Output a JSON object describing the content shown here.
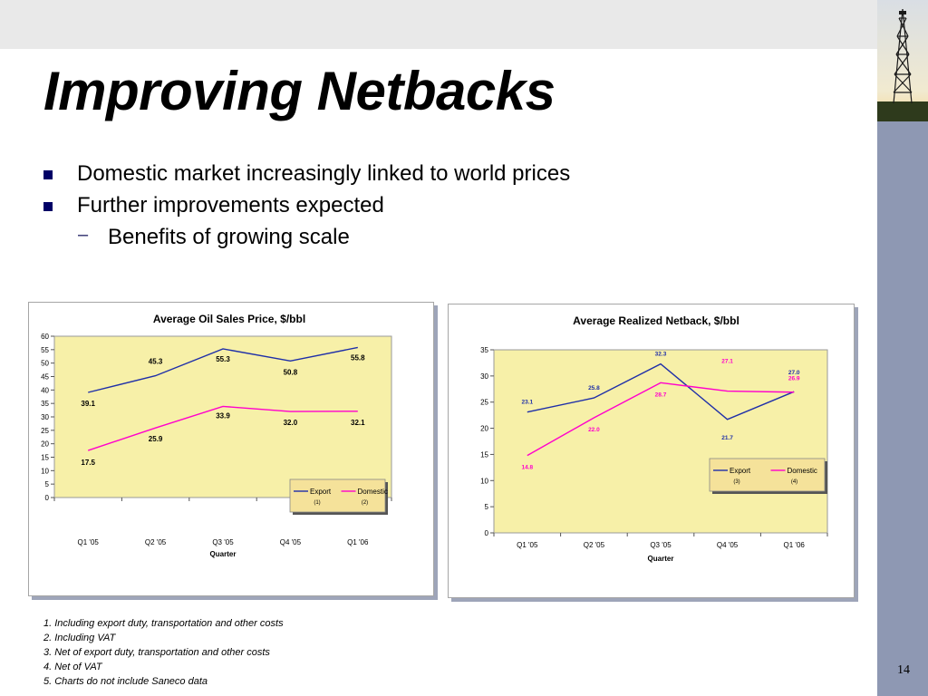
{
  "slide": {
    "title": "Improving Netbacks",
    "bullets": [
      "Domestic market increasingly linked to world prices",
      "Further improvements expected"
    ],
    "sub_bullet": "Benefits of growing scale",
    "footnotes": [
      "1.  Including export duty, transportation and other costs",
      "2.  Including VAT",
      "3.  Net of export duty, transportation and other costs",
      "4. Net of VAT",
      "5. Charts do not include Saneco data"
    ],
    "page_number": "14"
  },
  "colors": {
    "export": "#1f2fa8",
    "domestic": "#ff00cc",
    "plot_bg": "#f7f0a8",
    "legend_bg": "#f5e29a"
  },
  "chart_data": [
    {
      "type": "line",
      "title": "Average Oil Sales Price, $/bbl",
      "xlabel": "Quarter",
      "ylabel": "",
      "categories": [
        "Q1 '05",
        "Q2 '05",
        "Q3 '05",
        "Q4 '05",
        "Q1 '06"
      ],
      "ylim": [
        0,
        60
      ],
      "yticks": [
        0,
        5,
        10,
        15,
        20,
        25,
        30,
        35,
        40,
        45,
        50,
        55,
        60
      ],
      "grid": false,
      "legend": "lower-right",
      "series": [
        {
          "name": "Export",
          "note": "(1)",
          "values": [
            39.1,
            45.3,
            55.3,
            50.8,
            55.8
          ],
          "labels": [
            "39.1",
            "45.3",
            "55.3",
            "50.8",
            "55.8"
          ]
        },
        {
          "name": "Domestic",
          "note": "(2)",
          "values": [
            17.5,
            25.9,
            33.9,
            32.0,
            32.1
          ],
          "labels": [
            "17.5",
            "25.9",
            "33.9",
            "32.0",
            "32.1"
          ]
        }
      ]
    },
    {
      "type": "line",
      "title": "Average Realized Netback, $/bbl",
      "xlabel": "Quarter",
      "ylabel": "",
      "categories": [
        "Q1 '05",
        "Q2 '05",
        "Q3 '05",
        "Q4 '05",
        "Q1 '06"
      ],
      "ylim": [
        0,
        35
      ],
      "yticks": [
        0,
        5,
        10,
        15,
        20,
        25,
        30,
        35
      ],
      "grid": false,
      "legend": "lower-right",
      "series": [
        {
          "name": "Export",
          "note": "(3)",
          "values": [
            23.1,
            25.8,
            32.3,
            21.7,
            27.0
          ],
          "labels": [
            "23.1",
            "25.8",
            "32.3",
            "21.7",
            "27.0"
          ]
        },
        {
          "name": "Domestic",
          "note": "(4)",
          "values": [
            14.8,
            22.0,
            28.7,
            27.1,
            26.9
          ],
          "labels": [
            "14.8",
            "22.0",
            "28.7",
            "27.1",
            "26.9"
          ]
        }
      ]
    }
  ]
}
